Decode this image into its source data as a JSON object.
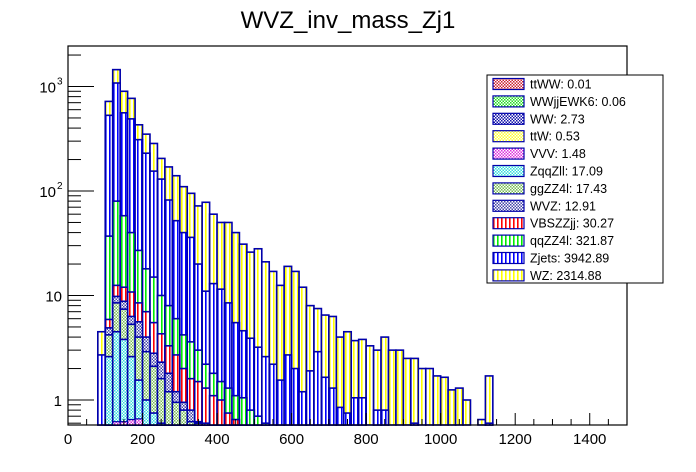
{
  "chart_data": {
    "type": "bar",
    "stacked": true,
    "title": "WVZ_inv_mass_Zj1",
    "xlabel": "",
    "ylabel": "",
    "xlim": [
      0,
      1500
    ],
    "ylim": [
      0.57,
      2300
    ],
    "yscale": "log",
    "bin_width": 20,
    "x_ticks": [
      0,
      200,
      400,
      600,
      800,
      1000,
      1200,
      1400
    ],
    "x_tick_labels": [
      "0",
      "200",
      "400",
      "600",
      "800",
      "1000",
      "1200",
      "1400"
    ],
    "y_ticks": [
      1,
      10,
      100,
      1000
    ],
    "y_tick_labels": [
      {
        "base": "1",
        "exp": ""
      },
      {
        "base": "10",
        "exp": ""
      },
      {
        "base": "10",
        "exp": "2"
      },
      {
        "base": "10",
        "exp": "3"
      }
    ],
    "grid": false,
    "legend_position": "top-right",
    "legend": [
      {
        "label": "ttWW: 0.01",
        "name": "ttWW",
        "color": "#cc3344",
        "fill": "crosshatch"
      },
      {
        "label": "WWjjEWK6: 0.06",
        "name": "WWjjEWK6",
        "color": "#33cc33",
        "fill": "crosshatch"
      },
      {
        "label": "WW: 2.73",
        "name": "WW",
        "color": "#2222aa",
        "fill": "crosshatch"
      },
      {
        "label": "ttW: 0.53",
        "name": "ttW",
        "color": "#ffff44",
        "fill": "crosshatch"
      },
      {
        "label": "VVV: 1.48",
        "name": "VVV",
        "color": "#dd33dd",
        "fill": "crosshatch"
      },
      {
        "label": "ZqqZll: 17.09",
        "name": "ZqqZll",
        "color": "#33dddd",
        "fill": "crosshatch"
      },
      {
        "label": "ggZZ4l: 17.43",
        "name": "ggZZ4l",
        "color": "#88cc66",
        "fill": "crosshatch"
      },
      {
        "label": "WVZ: 12.91",
        "name": "WVZ",
        "color": "#5555bb",
        "fill": "crosshatch"
      },
      {
        "label": "VBSZZjj: 30.27",
        "name": "VBSZZjj",
        "color": "#ff0000",
        "fill": "vlines"
      },
      {
        "label": "qqZZ4l: 321.87",
        "name": "qqZZ4l",
        "color": "#00ee00",
        "fill": "vlines"
      },
      {
        "label": "Zjets: 3942.89",
        "name": "Zjets",
        "color": "#0000ff",
        "fill": "vlines"
      },
      {
        "label": "WZ: 2314.88",
        "name": "WZ",
        "color": "#ffff00",
        "fill": "vlines"
      }
    ],
    "outline_color": "#0000aa",
    "bins_start": [
      80,
      100,
      120,
      140,
      160,
      180,
      200,
      220,
      240,
      260,
      280,
      300,
      320,
      340,
      360,
      380,
      400,
      420,
      440,
      460,
      480,
      500,
      520,
      540,
      560,
      580,
      600,
      620,
      640,
      660,
      680,
      700,
      720,
      740,
      760,
      780,
      800,
      820,
      840,
      860,
      880,
      900,
      920,
      940,
      960,
      980,
      1000,
      1020,
      1040,
      1060,
      1080,
      1100,
      1120
    ],
    "series_cumulative": [
      {
        "name": "ZqqZll",
        "values": [
          0,
          2.6,
          4.5,
          3.8,
          2.6,
          1.55,
          1.0,
          0.75,
          0.6,
          0.5,
          0.45,
          0.35,
          0,
          0,
          0,
          0,
          0,
          0,
          0,
          0,
          0,
          0,
          0,
          0,
          0,
          0,
          0,
          0,
          0,
          0,
          0,
          0,
          0,
          0,
          0,
          0,
          0,
          0,
          0,
          0,
          0,
          0,
          0,
          0,
          0,
          0,
          0,
          0,
          0,
          0,
          0,
          0,
          0
        ]
      },
      {
        "name": "ggZZ4l",
        "values": [
          0,
          4.2,
          8.5,
          7.4,
          5.3,
          4.0,
          2.9,
          2.1,
          1.6,
          1.2,
          0.95,
          0.8,
          0.62,
          0.6,
          0,
          0,
          0,
          0,
          0,
          0,
          0,
          0,
          0,
          0,
          0,
          0,
          0,
          0,
          0,
          0,
          0,
          0,
          0,
          0,
          0,
          0,
          0,
          0,
          0,
          0,
          0,
          0,
          0,
          0,
          0,
          0,
          0,
          0,
          0,
          0,
          0,
          0,
          0
        ]
      },
      {
        "name": "WVZ",
        "values": [
          0,
          4.9,
          9.8,
          8.8,
          6.3,
          5.6,
          4.0,
          2.8,
          2.3,
          1.8,
          1.2,
          0.95,
          0.8,
          0.62,
          0.6,
          0,
          0,
          0,
          0,
          0,
          0,
          0,
          0,
          0,
          0,
          0,
          0,
          0,
          0,
          0,
          0,
          0,
          0,
          0,
          0,
          0,
          0,
          0,
          0,
          0,
          0,
          0,
          0,
          0,
          0,
          0,
          0,
          0,
          0,
          0,
          0,
          0,
          0
        ]
      },
      {
        "name": "VBSZZjj",
        "values": [
          0,
          5.9,
          12.5,
          12.0,
          10.8,
          8.5,
          7.0,
          5.5,
          4.3,
          3.3,
          2.7,
          2.0,
          1.6,
          1.5,
          1.3,
          1.1,
          1.0,
          0.75,
          0.65,
          0,
          0,
          0,
          0,
          0,
          0,
          0,
          0,
          0,
          0,
          0,
          0,
          0,
          0,
          0,
          0,
          0,
          0,
          0,
          0,
          0,
          0,
          0,
          0,
          0,
          0,
          0,
          0,
          0,
          0,
          0,
          0,
          0,
          0
        ]
      },
      {
        "name": "qqZZ4l",
        "values": [
          0,
          37,
          80,
          58,
          40,
          27,
          18,
          15,
          10,
          8,
          6,
          4.2,
          3.6,
          3.0,
          2.2,
          1.8,
          1.5,
          1.3,
          1.1,
          1.05,
          0.8,
          0.7,
          0.6,
          0,
          0,
          0,
          0,
          0,
          0,
          0,
          0,
          0,
          0,
          0,
          0,
          0,
          0,
          0,
          0,
          0,
          0,
          0,
          0,
          0,
          0,
          0,
          0,
          0,
          0,
          0,
          0,
          0,
          0
        ]
      },
      {
        "name": "Zjets",
        "values": [
          2.7,
          530,
          1080,
          560,
          490,
          310,
          230,
          155,
          130,
          82,
          52,
          40,
          36,
          20,
          11,
          13,
          11.5,
          8.5,
          5.5,
          4.6,
          3.9,
          3.2,
          2.6,
          2.2,
          1.55,
          2.7,
          2.0,
          1.2,
          1.9,
          2.9,
          1.65,
          1.3,
          0.85,
          0.75,
          1.05,
          1.05,
          0,
          0.8,
          0.8,
          0,
          0,
          0,
          0.6,
          0,
          0,
          0,
          0,
          0,
          0,
          0,
          0,
          0,
          0.6
        ]
      },
      {
        "name": "WZ",
        "values": [
          4.5,
          720,
          1450,
          900,
          770,
          430,
          350,
          285,
          205,
          170,
          140,
          110,
          95,
          72,
          78,
          60,
          50,
          50,
          40,
          31,
          26,
          28,
          21,
          17,
          12.5,
          19,
          17,
          12,
          8,
          7.5,
          6.5,
          6.3,
          4.0,
          4.5,
          3.7,
          3.8,
          3.3,
          3.0,
          4.0,
          3.0,
          3.0,
          2.5,
          2.5,
          2.0,
          2.0,
          1.7,
          1.65,
          1.25,
          1.3,
          1.0,
          0,
          0.65,
          1.7
        ]
      }
    ],
    "unit_note": "Stacked event counts per 20-unit bin; top-of-layer values estimated from log-scale axis"
  }
}
